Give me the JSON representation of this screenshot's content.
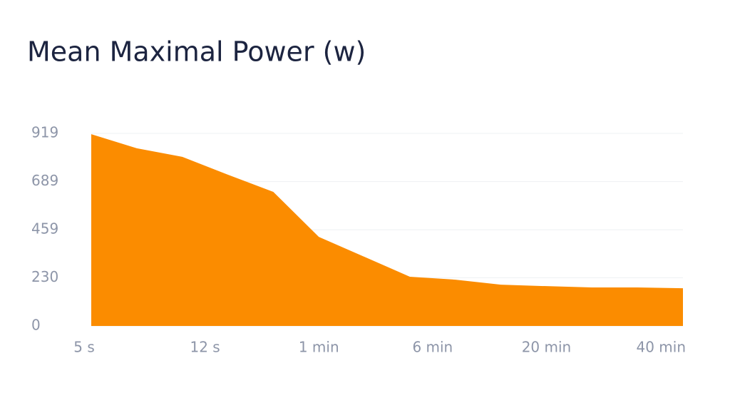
{
  "chart_data": {
    "type": "area",
    "title": "Mean Maximal Power (w)",
    "x": [
      0,
      1,
      2,
      3,
      4,
      5,
      6,
      7,
      8,
      9,
      10,
      11,
      12,
      13
    ],
    "values": [
      915,
      848,
      807,
      722,
      640,
      425,
      330,
      235,
      221,
      197,
      190,
      184,
      184,
      180
    ],
    "color": "#fb8c00",
    "xlim": [
      0,
      13
    ],
    "xticks": [
      {
        "value": 0,
        "label": "5 s"
      },
      {
        "value": 2.5,
        "label": "12 s"
      },
      {
        "value": 5,
        "label": "1 min"
      },
      {
        "value": 7.5,
        "label": "6 min"
      },
      {
        "value": 10,
        "label": "20 min"
      },
      {
        "value": 12.5,
        "label": "40 min"
      }
    ],
    "ylim": [
      0,
      919
    ],
    "yticks": [
      0,
      230,
      459,
      689,
      919
    ],
    "grid": true
  }
}
